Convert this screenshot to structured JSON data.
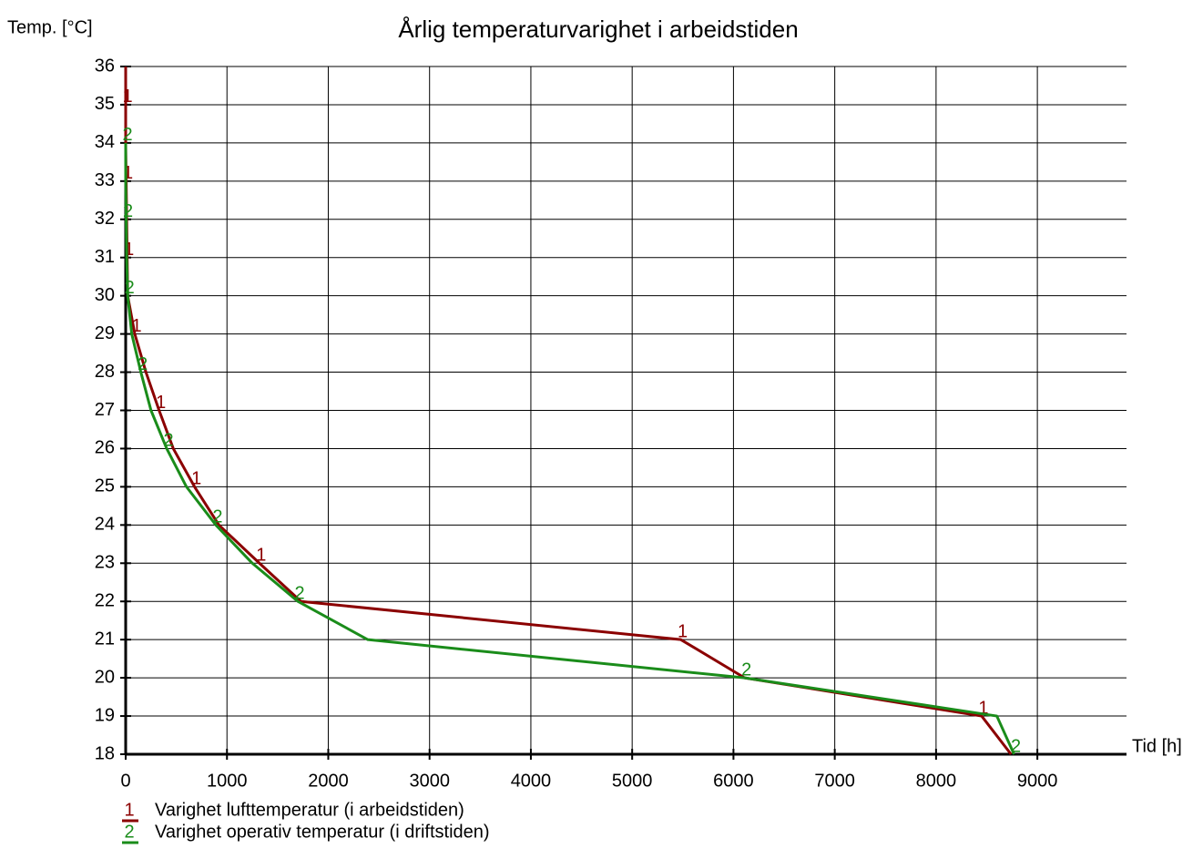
{
  "chart_data": {
    "type": "line",
    "title": "Årlig temperaturvarighet i arbeidstiden",
    "y_label": "Temp. [°C]",
    "x_label": "Tid [h]",
    "xlim": [
      0,
      9880
    ],
    "xticks": [
      0,
      1000,
      2000,
      3000,
      4000,
      5000,
      6000,
      7000,
      8000,
      9000
    ],
    "ylim": [
      18,
      36
    ],
    "yticks": [
      18,
      19,
      20,
      21,
      22,
      23,
      24,
      25,
      26,
      27,
      28,
      29,
      30,
      31,
      32,
      33,
      34,
      35,
      36
    ],
    "grid": true,
    "series": [
      {
        "name": "Varighet lufttemperatur (i arbeidstiden)",
        "marker": "1",
        "color": "#8b0000",
        "x": [
          0,
          0,
          0,
          5,
          10,
          15,
          20,
          90,
          200,
          330,
          470,
          680,
          920,
          1320,
          1730,
          5480,
          6110,
          8450,
          8740
        ],
        "values": [
          36,
          35,
          34,
          33,
          32,
          31,
          30,
          29,
          28,
          27,
          26,
          25,
          24,
          23,
          22,
          21,
          20,
          19,
          18
        ]
      },
      {
        "name": "Varighet operativ temperatur (i driftstiden)",
        "marker": "2",
        "color": "#1a8c1a",
        "x": [
          0,
          0,
          5,
          10,
          20,
          60,
          150,
          250,
          405,
          600,
          890,
          1250,
          1700,
          2390,
          6110,
          8600,
          8770
        ],
        "values": [
          34,
          33,
          32,
          31,
          30,
          29,
          28,
          27,
          26,
          25,
          24,
          23,
          22,
          21,
          20,
          19,
          18
        ]
      }
    ]
  }
}
